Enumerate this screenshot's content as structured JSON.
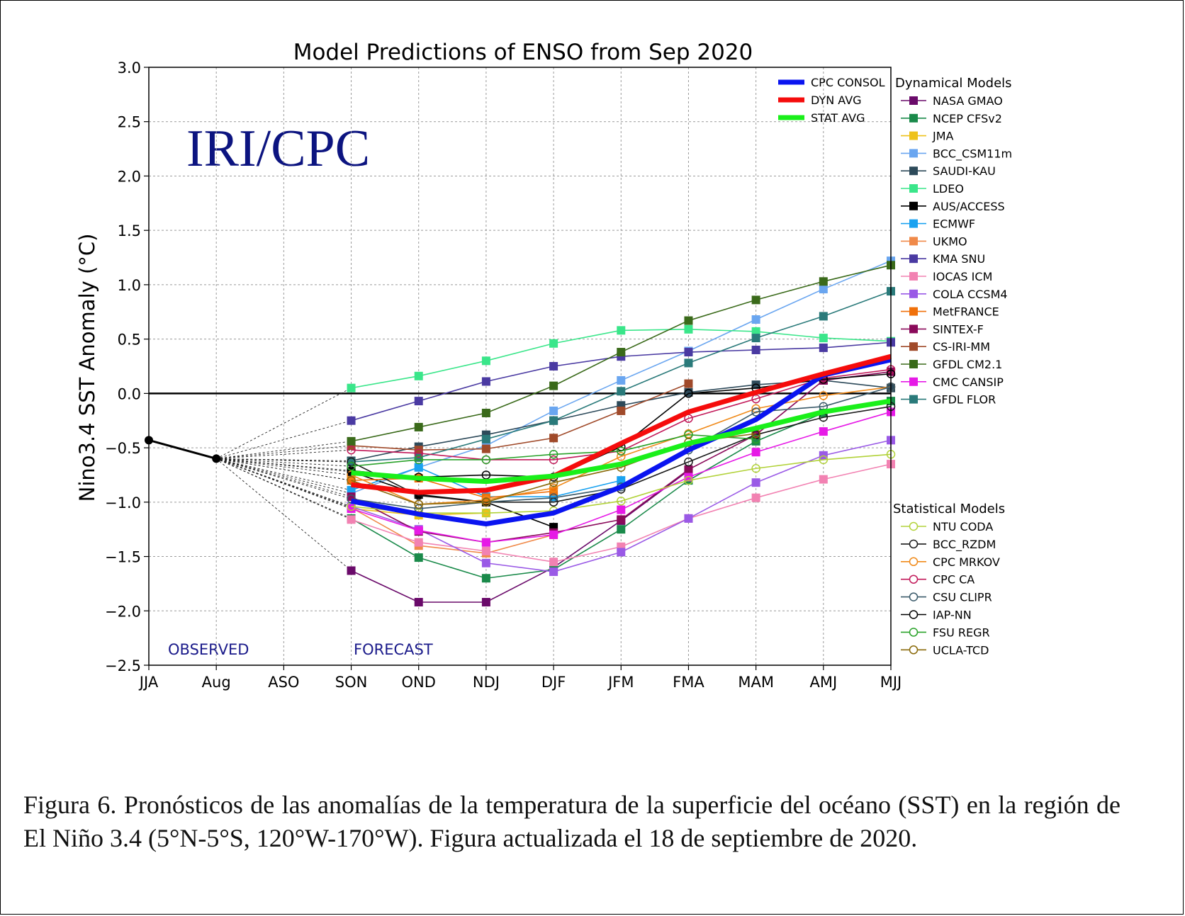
{
  "chart_data": {
    "type": "line",
    "title": "Model Predictions of ENSO from Sep 2020",
    "ylabel": "Nino3.4 SST Anomaly (°C)",
    "xlabel": "",
    "ylim": [
      -2.5,
      3.0
    ],
    "yticks": [
      -2.5,
      -2.0,
      -1.5,
      -1.0,
      -0.5,
      0.0,
      0.5,
      1.0,
      1.5,
      2.0,
      2.5,
      3.0
    ],
    "ytick_labels": [
      "−2.5",
      "−2.0",
      "−1.5",
      "−1.0",
      "−0.5",
      "0.0",
      "0.5",
      "1.0",
      "1.5",
      "2.0",
      "2.5",
      "3.0"
    ],
    "categories": [
      "JJA",
      "Aug",
      "ASO",
      "SON",
      "OND",
      "NDJ",
      "DJF",
      "JFM",
      "FMA",
      "MAM",
      "AMJ",
      "MJJ"
    ],
    "grid": true,
    "watermark": "IRI/CPC",
    "observed_label": "OBSERVED",
    "forecast_label": "FORECAST",
    "observed": [
      -0.43,
      -0.6
    ],
    "averages": [
      {
        "name": "CPC CONSOL",
        "color": "#0a14f0",
        "values": [
          -0.99,
          -1.11,
          -1.2,
          -1.1,
          -0.86,
          -0.52,
          -0.24,
          0.17,
          0.31
        ]
      },
      {
        "name": "DYN AVG",
        "color": "#f50c0c",
        "values": [
          -0.84,
          -0.91,
          -0.89,
          -0.76,
          -0.46,
          -0.17,
          0.01,
          0.18,
          0.34
        ]
      },
      {
        "name": "STAT AVG",
        "color": "#1aef1a",
        "values": [
          -0.73,
          -0.78,
          -0.81,
          -0.76,
          -0.65,
          -0.46,
          -0.32,
          -0.17,
          -0.07
        ]
      }
    ],
    "dynamical_title": "Dynamical Models",
    "dynamical": [
      {
        "name": "NASA GMAO",
        "color": "#6a0a6a",
        "values": [
          -1.63,
          -1.92,
          -1.92,
          -1.6,
          -1.17,
          -0.71,
          null,
          null,
          null
        ]
      },
      {
        "name": "NCEP CFSv2",
        "color": "#1a8a4a",
        "values": [
          -1.15,
          -1.51,
          -1.7,
          -1.62,
          -1.25,
          -0.8,
          -0.44,
          -0.18,
          -0.07
        ]
      },
      {
        "name": "JMA",
        "color": "#eec21a",
        "values": [
          -1.06,
          -1.12,
          -1.1,
          null,
          null,
          null,
          null,
          null,
          null
        ]
      },
      {
        "name": "BCC_CSM11m",
        "color": "#6aa6f0",
        "values": [
          -0.92,
          -0.68,
          -0.48,
          -0.16,
          0.12,
          0.39,
          0.68,
          0.96,
          1.22
        ]
      },
      {
        "name": "SAUDI-KAU",
        "color": "#2d4a5a",
        "values": [
          -0.62,
          -0.49,
          -0.38,
          -0.25,
          -0.11,
          0.01,
          0.08,
          0.12,
          0.05
        ]
      },
      {
        "name": "LDEO",
        "color": "#3ae68a",
        "values": [
          0.05,
          0.16,
          0.3,
          0.46,
          0.58,
          0.59,
          0.57,
          0.51,
          0.48
        ]
      },
      {
        "name": "AUS/ACCESS",
        "color": "#000000",
        "values": [
          -0.72,
          -0.93,
          -1.0,
          -1.23,
          null,
          null,
          null,
          null,
          null
        ]
      },
      {
        "name": "ECMWF",
        "color": "#1aa2f0",
        "values": [
          -0.89,
          -0.68,
          -0.95,
          -0.95,
          -0.8,
          null,
          null,
          null,
          null
        ]
      },
      {
        "name": "UKMO",
        "color": "#f08a4a",
        "values": [
          -1.05,
          -1.4,
          -1.47,
          -1.3,
          null,
          null,
          null,
          null,
          null
        ]
      },
      {
        "name": "KMA SNU",
        "color": "#4a3aa2",
        "values": [
          -0.25,
          -0.07,
          0.11,
          0.25,
          0.34,
          0.38,
          0.4,
          0.42,
          0.47
        ]
      },
      {
        "name": "IOCAS ICM",
        "color": "#f282b2",
        "values": [
          -1.16,
          -1.37,
          -1.45,
          -1.55,
          -1.41,
          -1.15,
          -0.96,
          -0.79,
          -0.65
        ]
      },
      {
        "name": "COLA CCSM4",
        "color": "#9a5ae6",
        "values": [
          -1.04,
          -1.25,
          -1.56,
          -1.64,
          -1.46,
          -1.15,
          -0.82,
          -0.57,
          -0.43
        ]
      },
      {
        "name": "MetFRANCE",
        "color": "#f0700a",
        "values": [
          -0.8,
          -0.78,
          -0.96,
          -0.9,
          null,
          null,
          null,
          null,
          null
        ]
      },
      {
        "name": "SINTEX-F",
        "color": "#8a0a5a",
        "values": [
          -0.95,
          -1.27,
          -1.37,
          -1.28,
          -1.16,
          -0.7,
          -0.38,
          0.12,
          0.2
        ]
      },
      {
        "name": "CS-IRI-MM",
        "color": "#a04a2a",
        "values": [
          -0.48,
          -0.52,
          -0.51,
          -0.41,
          -0.16,
          0.09,
          null,
          null,
          null
        ]
      },
      {
        "name": "GFDL CM2.1",
        "color": "#3a6a1a",
        "values": [
          -0.44,
          -0.31,
          -0.18,
          0.07,
          0.38,
          0.67,
          0.86,
          1.03,
          1.18
        ]
      },
      {
        "name": "CMC CANSIP",
        "color": "#e61ae6",
        "values": [
          -1.06,
          -1.26,
          -1.37,
          -1.3,
          -1.07,
          -0.77,
          -0.54,
          -0.35,
          -0.17
        ]
      },
      {
        "name": "GFDL FLOR",
        "color": "#2a7a7a",
        "values": [
          -0.63,
          -0.59,
          -0.42,
          -0.25,
          0.02,
          0.28,
          0.51,
          0.71,
          0.94
        ]
      }
    ],
    "statistical_title": "Statistical Models",
    "statistical": [
      {
        "name": "NTU CODA",
        "color": "#b2d23a",
        "values": [
          -1.04,
          -1.1,
          -1.1,
          -1.08,
          -0.99,
          -0.8,
          -0.69,
          -0.61,
          -0.56
        ]
      },
      {
        "name": "BCC_RZDM",
        "color": "#1a1a1a",
        "values": [
          -0.63,
          -0.94,
          -1.0,
          -1.0,
          -0.88,
          -0.63,
          -0.38,
          -0.22,
          -0.12
        ]
      },
      {
        "name": "CPC MRKOV",
        "color": "#f08a1a",
        "values": [
          -0.75,
          -1.02,
          -0.98,
          -0.87,
          -0.58,
          -0.37,
          -0.14,
          -0.02,
          0.06
        ]
      },
      {
        "name": "CPC CA",
        "color": "#c21a5a",
        "values": [
          -0.52,
          -0.55,
          -0.61,
          -0.61,
          -0.53,
          -0.23,
          -0.05,
          0.14,
          0.22
        ]
      },
      {
        "name": "CSU CLIPR",
        "color": "#3a5a6a",
        "values": [
          -0.97,
          -1.06,
          -1.0,
          -0.96,
          -0.86,
          -0.52,
          -0.17,
          -0.12,
          0.06
        ]
      },
      {
        "name": "IAP-NN",
        "color": "#000000",
        "values": [
          -0.71,
          -0.77,
          -0.75,
          -0.77,
          -0.49,
          0.0,
          0.05,
          0.13,
          0.18
        ]
      },
      {
        "name": "FSU REGR",
        "color": "#2aa22a",
        "values": [
          -0.67,
          -0.61,
          -0.61,
          -0.56,
          -0.53,
          -0.38,
          -0.42,
          null,
          null
        ]
      },
      {
        "name": "UCLA-TCD",
        "color": "#8a6a0a",
        "values": [
          -0.8,
          -1.02,
          -1.0,
          -0.82,
          -0.68,
          -0.45,
          -0.37,
          null,
          null
        ]
      }
    ]
  },
  "caption": "Figura 6. Pronósticos de las anomalías de la temperatura de la superficie del océano (SST) en la región de El Niño 3.4 (5°N-5°S, 120°W-170°W). Figura actualizada el 18 de septiembre de 2020."
}
